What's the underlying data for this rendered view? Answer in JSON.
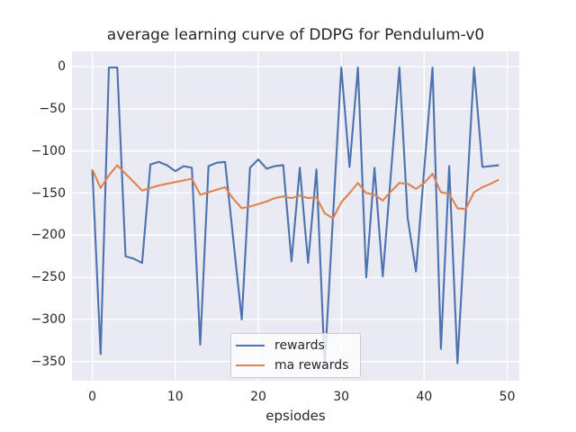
{
  "figure": {
    "background": "#FFFFFF",
    "plot_background": "#EAEAF2",
    "grid_color": "#FFFFFF",
    "text_color": "#262626",
    "legend_border_color": "#CCCCCC"
  },
  "chart_data": {
    "type": "line",
    "title": "average learning curve of DDPG for Pendulum-v0",
    "xlabel": "epsiodes",
    "ylabel": "",
    "grid": true,
    "legend_position": "lower center",
    "xlim": [
      -2.45,
      51.45
    ],
    "ylim": [
      -372.75,
      17.75
    ],
    "x_ticks": [
      0,
      10,
      20,
      30,
      40,
      50
    ],
    "x_tick_labels": [
      "0",
      "10",
      "20",
      "30",
      "40",
      "50"
    ],
    "y_ticks": [
      0,
      -50,
      -100,
      -150,
      -200,
      -250,
      -300,
      -350
    ],
    "y_tick_labels": [
      "0",
      "−50",
      "−100",
      "−150",
      "−200",
      "−250",
      "−300",
      "−350"
    ],
    "x": [
      0,
      1,
      2,
      3,
      4,
      5,
      6,
      7,
      8,
      9,
      10,
      11,
      12,
      13,
      14,
      15,
      16,
      17,
      18,
      19,
      20,
      21,
      22,
      23,
      24,
      25,
      26,
      27,
      28,
      29,
      30,
      31,
      32,
      33,
      34,
      35,
      36,
      37,
      38,
      39,
      40,
      41,
      42,
      43,
      44,
      45,
      46,
      47,
      48,
      49
    ],
    "series": [
      {
        "name": "rewards",
        "color": "#4C72B0",
        "values": [
          -122,
          -341,
          -1,
          -1,
          -225,
          -228,
          -233,
          -116,
          -113,
          -117,
          -124,
          -118,
          -120,
          -330,
          -118,
          -114,
          -113,
          -206,
          -300,
          -120,
          -110,
          -121,
          -118,
          -117,
          -231,
          -120,
          -233,
          -122,
          -355,
          -178,
          -1,
          -119,
          -1,
          -250,
          -120,
          -249,
          -125,
          -1,
          -180,
          -243,
          -121,
          -1,
          -335,
          -118,
          -352,
          -175,
          -1,
          -119,
          -118,
          -117
        ]
      },
      {
        "name": "ma rewards",
        "color": "#DD8452",
        "values": [
          -122,
          -144,
          -129,
          -117,
          -127,
          -137,
          -147,
          -144,
          -141,
          -139,
          -137,
          -135,
          -133,
          -152,
          -149,
          -146,
          -143,
          -157,
          -168,
          -166,
          -163,
          -160,
          -156,
          -154,
          -156,
          -153,
          -156,
          -155,
          -174,
          -180,
          -161,
          -150,
          -138,
          -150,
          -152,
          -159,
          -148,
          -138,
          -139,
          -145,
          -138,
          -127,
          -149,
          -151,
          -168,
          -169,
          -149,
          -143,
          -139,
          -134
        ]
      }
    ]
  }
}
